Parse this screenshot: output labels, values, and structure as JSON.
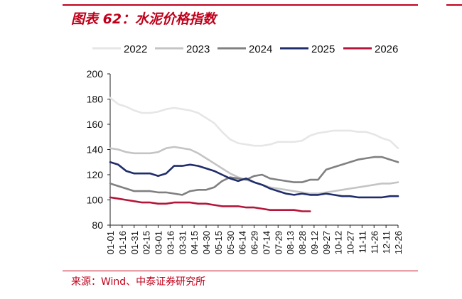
{
  "header": {
    "title": "图表 62：水泥价格指数"
  },
  "footer": {
    "source": "来源：Wind、中泰证券研究所"
  },
  "chart_data": {
    "type": "line",
    "title": "",
    "xlabel": "",
    "ylabel": "",
    "ylim": [
      80,
      200
    ],
    "yticks": [
      80,
      100,
      120,
      140,
      160,
      180,
      200
    ],
    "grid": false,
    "legend_position": "top",
    "x_categories": [
      "01-01",
      "01-16",
      "01-31",
      "02-15",
      "03-01",
      "03-16",
      "03-31",
      "04-15",
      "04-30",
      "05-15",
      "05-30",
      "06-14",
      "06-29",
      "07-14",
      "07-29",
      "08-13",
      "08-28",
      "09-12",
      "09-27",
      "10-12",
      "10-27",
      "11-11",
      "11-26",
      "12-11",
      "12-26"
    ],
    "series": [
      {
        "name": "2022",
        "color": "#e6e6e6",
        "days": [
          0,
          10,
          20,
          30,
          40,
          50,
          60,
          70,
          80,
          90,
          100,
          110,
          120,
          130,
          140,
          150,
          160,
          170,
          180,
          190,
          200,
          210,
          220,
          230,
          240,
          250,
          260,
          270,
          280,
          290,
          300,
          310,
          320,
          330,
          340,
          350,
          360
        ],
        "values": [
          181,
          176,
          174,
          171,
          169,
          169,
          170,
          172,
          173,
          172,
          171,
          169,
          165,
          161,
          154,
          148,
          145,
          144,
          143,
          143,
          144,
          146,
          146,
          146,
          147,
          151,
          153,
          154,
          155,
          155,
          155,
          154,
          154,
          152,
          149,
          147,
          141
        ]
      },
      {
        "name": "2023",
        "color": "#c4c4c4",
        "days": [
          0,
          10,
          20,
          30,
          40,
          50,
          60,
          70,
          80,
          90,
          100,
          110,
          120,
          130,
          140,
          150,
          160,
          170,
          180,
          190,
          200,
          210,
          220,
          230,
          240,
          250,
          260,
          270,
          280,
          290,
          300,
          310,
          320,
          330,
          340,
          350,
          360
        ],
        "values": [
          141,
          140,
          138,
          137,
          137,
          137,
          138,
          141,
          142,
          141,
          140,
          137,
          133,
          129,
          125,
          121,
          118,
          116,
          114,
          112,
          110,
          109,
          108,
          107,
          106,
          105,
          105,
          106,
          107,
          108,
          109,
          110,
          111,
          112,
          113,
          113,
          114
        ]
      },
      {
        "name": "2024",
        "color": "#808080",
        "days": [
          0,
          10,
          20,
          30,
          40,
          50,
          60,
          70,
          80,
          90,
          100,
          110,
          120,
          130,
          140,
          150,
          160,
          170,
          180,
          190,
          200,
          210,
          220,
          230,
          240,
          250,
          260,
          270,
          280,
          290,
          300,
          310,
          320,
          330,
          340,
          350,
          360
        ],
        "values": [
          113,
          111,
          109,
          107,
          107,
          107,
          106,
          106,
          105,
          104,
          107,
          108,
          108,
          110,
          115,
          118,
          117,
          116,
          119,
          120,
          117,
          116,
          115,
          114,
          114,
          116,
          116,
          124,
          126,
          128,
          130,
          132,
          133,
          134,
          134,
          132,
          130
        ]
      },
      {
        "name": "2025",
        "color": "#1f2d6b",
        "days": [
          0,
          10,
          20,
          30,
          40,
          50,
          60,
          70,
          80,
          90,
          100,
          110,
          120,
          130,
          140,
          150,
          160,
          170,
          180,
          190,
          200,
          210,
          220,
          230,
          240,
          250,
          260,
          270,
          280,
          290,
          300,
          310,
          320,
          330,
          340,
          350,
          360
        ],
        "values": [
          130,
          128,
          123,
          121,
          121,
          121,
          119,
          121,
          127,
          127,
          128,
          127,
          125,
          123,
          120,
          117,
          115,
          117,
          114,
          112,
          109,
          107,
          105,
          104,
          105,
          104,
          104,
          105,
          104,
          103,
          103,
          102,
          102,
          102,
          102,
          103,
          103
        ]
      },
      {
        "name": "2026",
        "color": "#b3163a",
        "days": [
          0,
          10,
          20,
          30,
          40,
          50,
          60,
          70,
          80,
          90,
          100,
          110,
          120,
          130,
          140,
          150,
          160,
          170,
          180,
          190,
          200,
          210,
          220,
          230,
          240,
          250
        ],
        "values": [
          102,
          101,
          100,
          99,
          98,
          98,
          97,
          97,
          98,
          98,
          98,
          97,
          97,
          96,
          95,
          95,
          95,
          94,
          94,
          93,
          92,
          92,
          92,
          92,
          91,
          91
        ]
      }
    ]
  }
}
